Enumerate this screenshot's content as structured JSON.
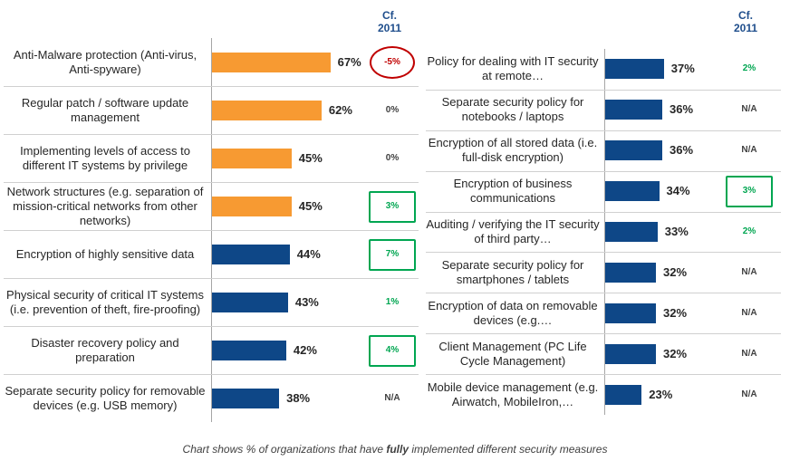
{
  "header": {
    "cf_label": "Cf. 2011"
  },
  "colors": {
    "orange": "#f79a32",
    "blue": "#0e4787",
    "delta_green": "#00a651",
    "delta_red": "#c00000",
    "neutral": "#404040"
  },
  "chart_data": {
    "type": "bar",
    "orientation": "horizontal",
    "title": "",
    "footnote_parts": [
      "Chart shows % of organizations that have ",
      "fully",
      " implemented different security measures"
    ],
    "xlim": [
      0,
      100
    ],
    "series": [
      {
        "name": "",
        "values": []
      }
    ],
    "left": [
      {
        "label": "Anti-Malware protection (Anti-virus, Anti-spyware)",
        "value": 67,
        "value_label": "67%",
        "color": "orange",
        "delta": "-5%",
        "delta_tone": "red",
        "highlight": "ellipse"
      },
      {
        "label": "Regular patch / software update management",
        "value": 62,
        "value_label": "62%",
        "color": "orange",
        "delta": "0%",
        "delta_tone": "neutral",
        "highlight": "none"
      },
      {
        "label": "Implementing levels of access to different IT systems by privilege",
        "value": 45,
        "value_label": "45%",
        "color": "orange",
        "delta": "0%",
        "delta_tone": "neutral",
        "highlight": "none"
      },
      {
        "label": "Network structures (e.g. separation of mission-critical networks from other networks)",
        "value": 45,
        "value_label": "45%",
        "color": "orange",
        "delta": "3%",
        "delta_tone": "green",
        "highlight": "box"
      },
      {
        "label": "Encryption of highly sensitive data",
        "value": 44,
        "value_label": "44%",
        "color": "blue",
        "delta": "7%",
        "delta_tone": "green",
        "highlight": "box"
      },
      {
        "label": "Physical security of critical IT systems (i.e. prevention of theft, fire-proofing)",
        "value": 43,
        "value_label": "43%",
        "color": "blue",
        "delta": "1%",
        "delta_tone": "green",
        "highlight": "none"
      },
      {
        "label": "Disaster recovery policy and preparation",
        "value": 42,
        "value_label": "42%",
        "color": "blue",
        "delta": "4%",
        "delta_tone": "green",
        "highlight": "box"
      },
      {
        "label": "Separate security policy for removable devices (e.g. USB memory)",
        "value": 38,
        "value_label": "38%",
        "color": "blue",
        "delta": "N/A",
        "delta_tone": "neutral",
        "highlight": "none"
      }
    ],
    "right": [
      {
        "label": "Policy for dealing with IT security at remote…",
        "value": 37,
        "value_label": "37%",
        "color": "blue",
        "delta": "2%",
        "delta_tone": "green",
        "highlight": "none"
      },
      {
        "label": "Separate security policy for notebooks / laptops",
        "value": 36,
        "value_label": "36%",
        "color": "blue",
        "delta": "N/A",
        "delta_tone": "neutral",
        "highlight": "none"
      },
      {
        "label": "Encryption of all stored data (i.e. full-disk encryption)",
        "value": 36,
        "value_label": "36%",
        "color": "blue",
        "delta": "N/A",
        "delta_tone": "neutral",
        "highlight": "none"
      },
      {
        "label": "Encryption of business communications",
        "value": 34,
        "value_label": "34%",
        "color": "blue",
        "delta": "3%",
        "delta_tone": "green",
        "highlight": "box"
      },
      {
        "label": "Auditing / verifying the IT security of third party…",
        "value": 33,
        "value_label": "33%",
        "color": "blue",
        "delta": "2%",
        "delta_tone": "green",
        "highlight": "none"
      },
      {
        "label": "Separate security policy for smartphones / tablets",
        "value": 32,
        "value_label": "32%",
        "color": "blue",
        "delta": "N/A",
        "delta_tone": "neutral",
        "highlight": "none"
      },
      {
        "label": "Encryption of data on removable devices (e.g.…",
        "value": 32,
        "value_label": "32%",
        "color": "blue",
        "delta": "N/A",
        "delta_tone": "neutral",
        "highlight": "none"
      },
      {
        "label": "Client Management (PC Life Cycle Management)",
        "value": 32,
        "value_label": "32%",
        "color": "blue",
        "delta": "N/A",
        "delta_tone": "neutral",
        "highlight": "none"
      },
      {
        "label": "Mobile device management (e.g. Airwatch, MobileIron,…",
        "value": 23,
        "value_label": "23%",
        "color": "blue",
        "delta": "N/A",
        "delta_tone": "neutral",
        "highlight": "none"
      }
    ]
  }
}
